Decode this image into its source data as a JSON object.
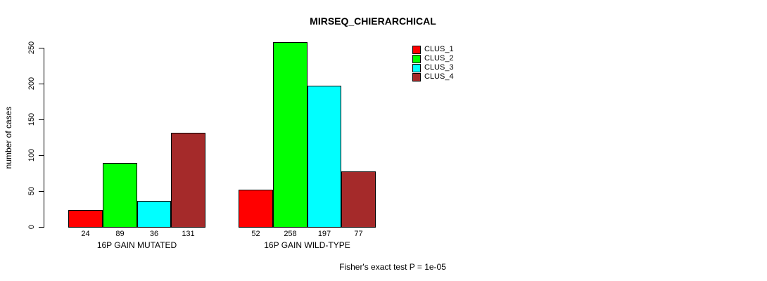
{
  "chart_data": {
    "type": "bar",
    "title": "MIRSEQ_CHIERARCHICAL",
    "xlabel": "",
    "ylabel": "number of cases",
    "ylim": [
      0,
      250
    ],
    "yticks": [
      0,
      50,
      100,
      150,
      200,
      250
    ],
    "grid": false,
    "legend_position": "top-right",
    "categories": [
      "16P GAIN MUTATED",
      "16P GAIN WILD-TYPE"
    ],
    "series": [
      {
        "name": "CLUS_1",
        "color": "#FF0000",
        "values": [
          24,
          52
        ]
      },
      {
        "name": "CLUS_2",
        "color": "#00FF00",
        "values": [
          89,
          258
        ]
      },
      {
        "name": "CLUS_3",
        "color": "#00FFFF",
        "values": [
          36,
          197
        ]
      },
      {
        "name": "CLUS_4",
        "color": "#A52A2A",
        "values": [
          131,
          77
        ]
      }
    ],
    "bar_value_labels": {
      "16P GAIN MUTATED": [
        24,
        89,
        36,
        131
      ],
      "16P GAIN WILD-TYPE": [
        52,
        258,
        197,
        77
      ]
    },
    "footnote": "Fisher's exact test P = 1e-05"
  }
}
